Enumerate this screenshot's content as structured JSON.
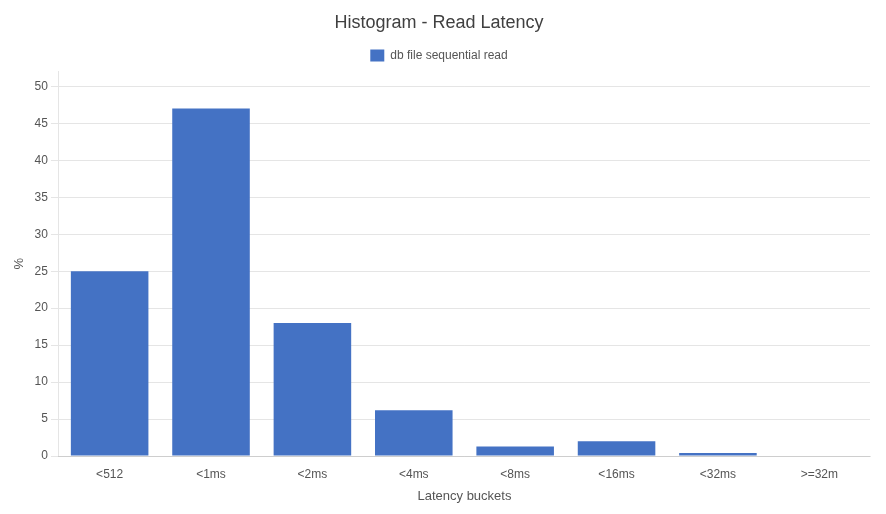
{
  "chart_data": {
    "type": "bar",
    "title": "Histogram - Read Latency",
    "xlabel": "Latency buckets",
    "ylabel": "%",
    "categories": [
      "<512",
      "<1ms",
      "<2ms",
      "<4ms",
      "<8ms",
      "<16ms",
      "<32ms",
      ">=32m"
    ],
    "series": [
      {
        "name": "db file sequential read",
        "color": "#4472C4",
        "values": [
          25,
          47,
          18,
          6.2,
          1.3,
          2.0,
          0.4,
          0
        ]
      }
    ],
    "ylim": [
      0,
      52
    ],
    "yticks": [
      0,
      5,
      10,
      15,
      20,
      25,
      30,
      35,
      40,
      45,
      50
    ],
    "grid": true,
    "legend": "top"
  }
}
